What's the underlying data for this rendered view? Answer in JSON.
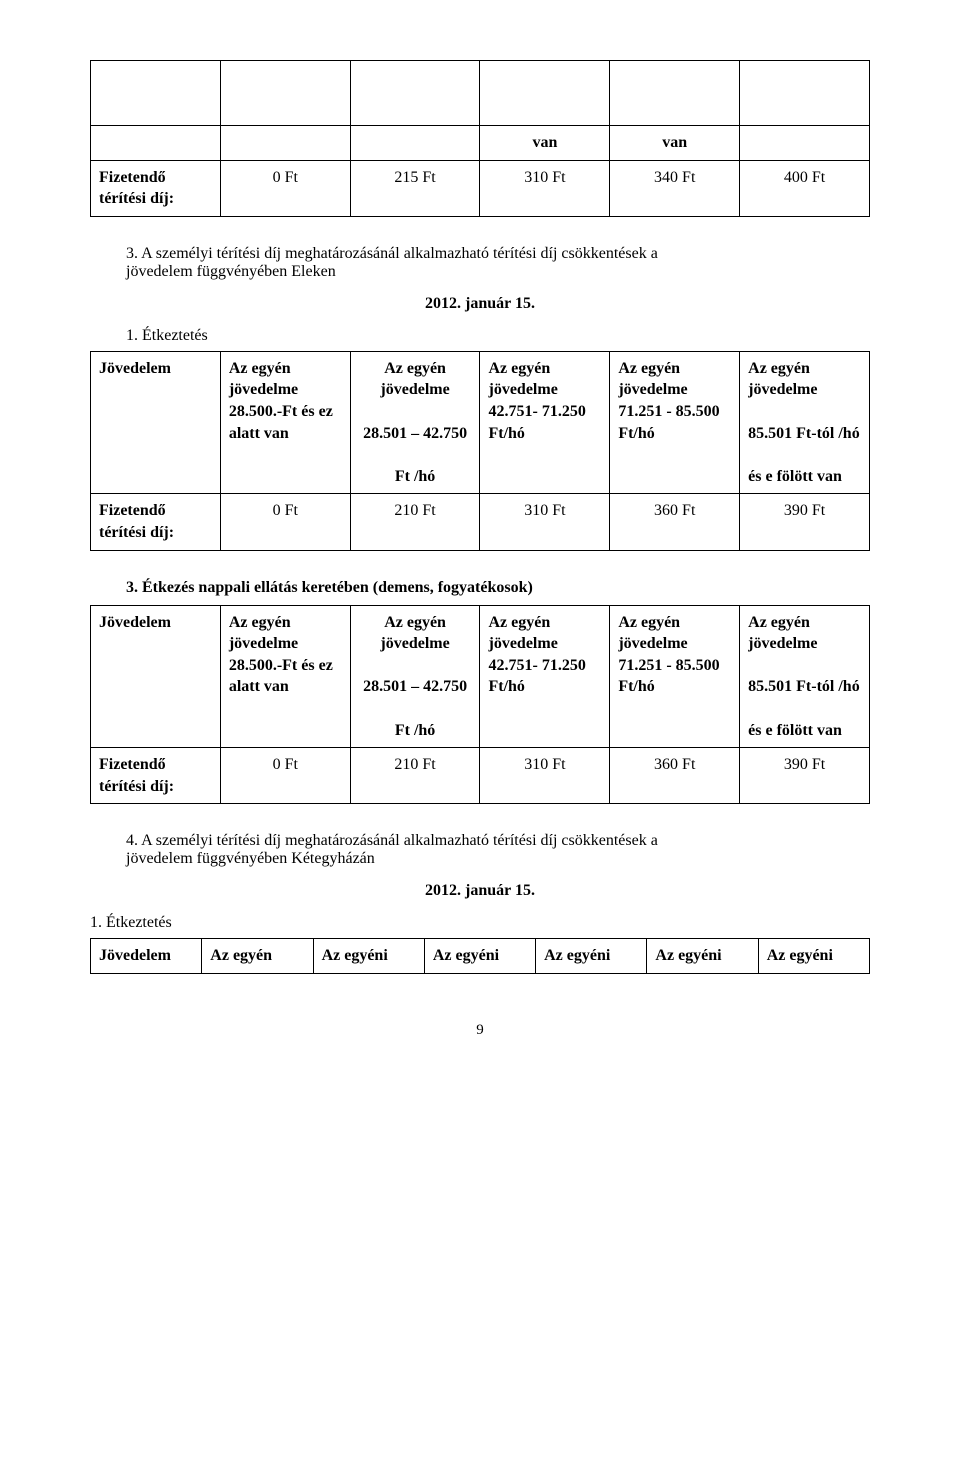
{
  "table_top": {
    "row_header": [
      "",
      "",
      "",
      "van",
      "van",
      ""
    ],
    "row_fee_label": "Fizetendő\ntérítési díj:",
    "row_fee": [
      "0 Ft",
      "215 Ft",
      "310 Ft",
      "340 Ft",
      "400 Ft"
    ]
  },
  "section3_intro": {
    "number": "3.",
    "text": "A személyi térítési díj meghatározásánál alkalmazható térítési díj csökkentések a\njövedelem függvényében Eleken",
    "date": "2012. január 15."
  },
  "etkeztetes_label": "1. Étkeztetés",
  "table_etk": {
    "hdr": [
      "Jövedelem",
      "Az egyén jövedelme 28.500.-Ft és ez alatt van",
      "Az egyén jövedelme\n\n28.501 – 42.750\n\nFt /hó",
      "Az egyén jövedelme 42.751- 71.250 Ft/hó",
      "Az egyén jövedelme 71.251 - 85.500 Ft/hó",
      "Az egyén jövedelme\n\n85.501 Ft-tól /hó\n\nés e fölött van"
    ],
    "fee_label": "Fizetendő térítési díj:",
    "fee": [
      "0 Ft",
      "210 Ft",
      "310 Ft",
      "360 Ft",
      "390 Ft"
    ]
  },
  "section3_nappali": {
    "number": "3.",
    "text": "Étkezés nappali ellátás keretében (demens, fogyatékosok)"
  },
  "table_nappali": {
    "hdr": [
      "Jövedelem",
      "Az egyén jövedelme 28.500.-Ft és ez alatt van",
      "Az egyén jövedelme\n\n28.501 – 42.750\n\nFt /hó",
      "Az egyén jövedelme 42.751- 71.250 Ft/hó",
      "Az egyén jövedelme 71.251 - 85.500 Ft/hó",
      "Az egyén jövedelme\n\n85.501 Ft-tól /hó\n\nés e fölött van"
    ],
    "fee_label": "Fizetendő térítési díj:",
    "fee": [
      "0 Ft",
      "210 Ft",
      "310 Ft",
      "360 Ft",
      "390 Ft"
    ]
  },
  "section4_intro": {
    "number": "4.",
    "text": "A személyi térítési díj meghatározásánál alkalmazható térítési díj csökkentések a\njövedelem függvényében Kétegyházán",
    "date": "2012. január 15."
  },
  "etkeztetes_label2": "1. Étkeztetés",
  "table_bottom_hdr": [
    "Jövedelem",
    "Az egyén",
    "Az egyéni",
    "Az egyéni",
    "Az egyéni",
    "Az egyéni",
    "Az egyéni"
  ],
  "page_number": "9",
  "colors": {
    "text": "#000000",
    "bg": "#ffffff",
    "border": "#000000"
  }
}
